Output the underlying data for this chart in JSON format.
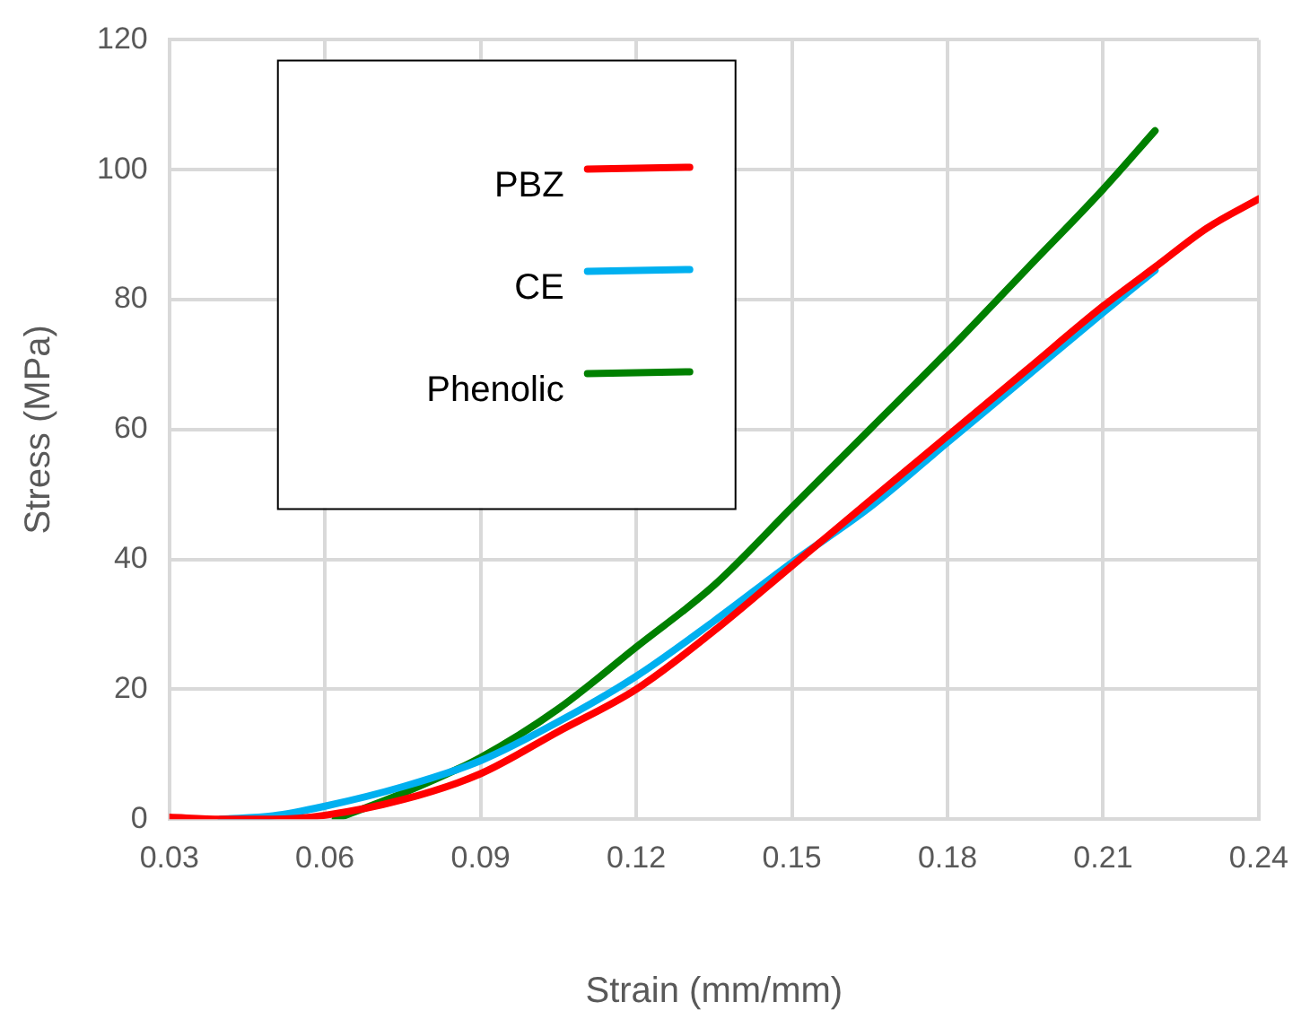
{
  "chart_data": {
    "type": "line",
    "xlabel": "Strain (mm/mm)",
    "ylabel": "Stress (MPa)",
    "xlim": [
      0.03,
      0.24
    ],
    "xticks": [
      0.03,
      0.06,
      0.09,
      0.12,
      0.15,
      0.18,
      0.21,
      0.24
    ],
    "ylim": [
      0,
      120
    ],
    "yticks": [
      0,
      20,
      40,
      60,
      80,
      100,
      120
    ],
    "grid": true,
    "legend": "top left",
    "marker": "none",
    "line_style": "solid",
    "series": [
      {
        "name": "PBZ",
        "color": "#ff0000",
        "x": [
          0.03,
          0.04,
          0.05,
          0.06,
          0.075,
          0.09,
          0.105,
          0.12,
          0.135,
          0.15,
          0.165,
          0.18,
          0.195,
          0.21,
          0.22,
          0.23,
          0.24
        ],
        "values": [
          0.3,
          0,
          0,
          0.6,
          3,
          7,
          13.5,
          20,
          29,
          39,
          49,
          59,
          69,
          79,
          85,
          91,
          95.5
        ]
      },
      {
        "name": "CE",
        "color": "#00b0f0",
        "x": [
          0.04,
          0.05,
          0.06,
          0.075,
          0.09,
          0.105,
          0.12,
          0.135,
          0.15,
          0.165,
          0.18,
          0.195,
          0.21,
          0.22
        ],
        "values": [
          0,
          0.5,
          2,
          5,
          9,
          15,
          22,
          30.5,
          39.5,
          48,
          58,
          68,
          78,
          84.5
        ]
      },
      {
        "name": "Phenolic",
        "color": "#008000",
        "x": [
          0.062,
          0.075,
          0.09,
          0.105,
          0.12,
          0.135,
          0.15,
          0.165,
          0.18,
          0.195,
          0.21,
          0.22
        ],
        "values": [
          0,
          4,
          9.5,
          17,
          26.5,
          36,
          48,
          60,
          72,
          84.5,
          97,
          106
        ]
      }
    ]
  }
}
